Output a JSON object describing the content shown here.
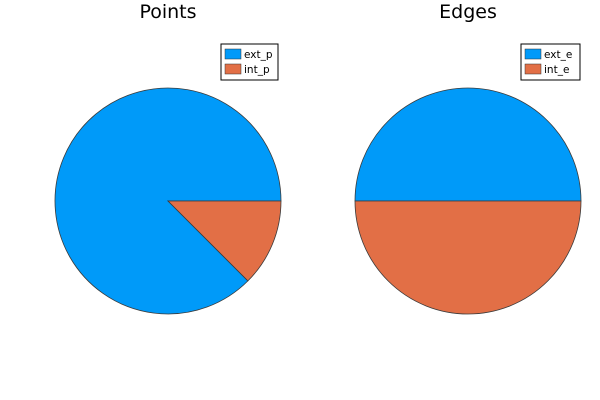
{
  "chart_data": [
    {
      "type": "pie",
      "title": "Points",
      "legend_position": "top-right",
      "slices": [
        {
          "name": "ext_p",
          "value": 0.875,
          "color": "#009af9"
        },
        {
          "name": "int_p",
          "value": 0.125,
          "color": "#e26f46"
        }
      ]
    },
    {
      "type": "pie",
      "title": "Edges",
      "legend_position": "top-right",
      "slices": [
        {
          "name": "ext_e",
          "value": 0.5,
          "color": "#009af9"
        },
        {
          "name": "int_e",
          "value": 0.5,
          "color": "#e26f46"
        }
      ]
    }
  ]
}
